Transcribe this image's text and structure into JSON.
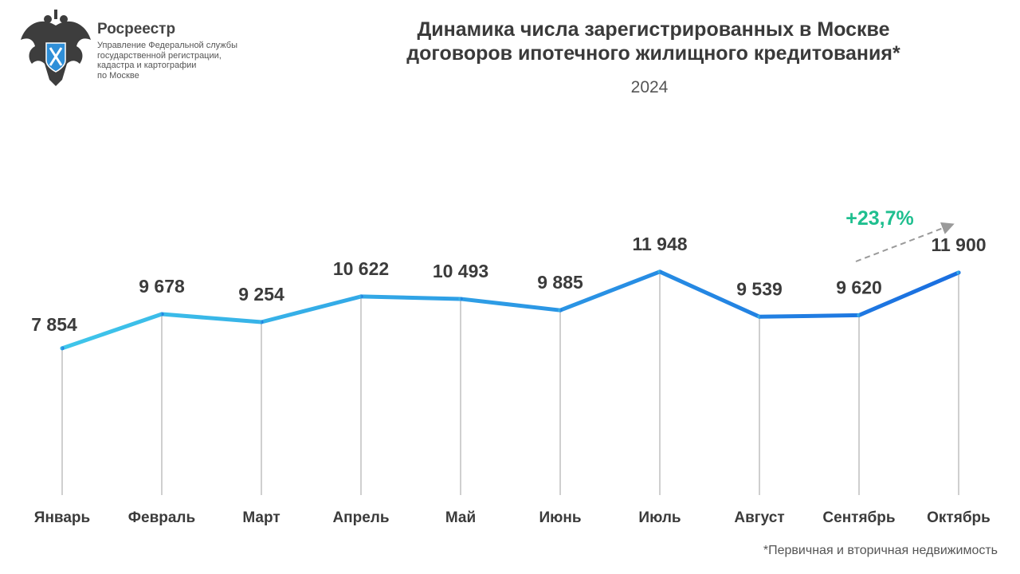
{
  "header": {
    "brand": "Росреестр",
    "brand_sub": [
      "Управление Федеральной службы",
      "государственной регистрации,",
      "кадастра и картографии",
      "по Москве"
    ]
  },
  "chart_data": {
    "type": "line",
    "title": "Динамика числа зарегистрированных в Москве договоров ипотечного жилищного кредитования*",
    "title_lines": [
      "Динамика числа зарегистрированных в Москве",
      "договоров ипотечного жилищного кредитования*"
    ],
    "subtitle": "2024",
    "categories": [
      "Январь",
      "Февраль",
      "Март",
      "Апрель",
      "Май",
      "Июнь",
      "Июль",
      "Август",
      "Сентябрь",
      "Октябрь"
    ],
    "values": [
      7854,
      9678,
      9254,
      10622,
      10493,
      9885,
      11948,
      9539,
      9620,
      11900
    ],
    "data_labels": [
      "7 854",
      "9 678",
      "9 254",
      "10 622",
      "10 493",
      "9 885",
      "11 948",
      "9 539",
      "9 620",
      "11 900"
    ],
    "ylim": [
      0,
      12000
    ],
    "grid": "vertical drop lines",
    "annotation": {
      "text": "+23,7%",
      "color": "#1fbf8f"
    },
    "colors": {
      "line_start": "#3fc6ea",
      "line_end": "#1a6ee0",
      "text": "#3b3b3b",
      "gridline": "#cfcfcf"
    },
    "footnote": "*Первичная и вторичная недвижимость"
  }
}
